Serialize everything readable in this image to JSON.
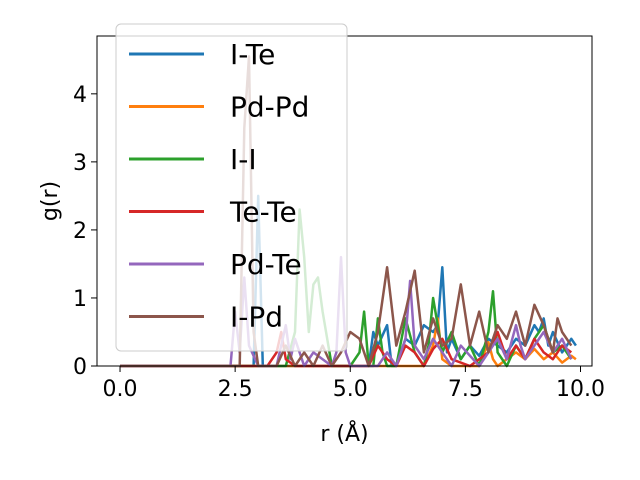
{
  "chart_data": {
    "type": "line",
    "title": "",
    "xlabel": "r (Å)",
    "ylabel": "g(r)",
    "xlim": [
      -0.5,
      10.25
    ],
    "ylim": [
      0,
      4.85
    ],
    "xticks": [
      0.0,
      2.5,
      5.0,
      7.5,
      10.0
    ],
    "xtick_labels": [
      "0.0",
      "2.5",
      "5.0",
      "7.5",
      "10.0"
    ],
    "yticks": [
      0,
      1,
      2,
      3,
      4
    ],
    "ytick_labels": [
      "0",
      "1",
      "2",
      "3",
      "4"
    ],
    "grid": false,
    "legend_position": "upper-left",
    "series": [
      {
        "name": "I-Te",
        "color": "#1f77b4",
        "x": [
          0.0,
          2.9,
          3.0,
          3.1,
          3.2,
          3.3,
          5.0,
          5.4,
          5.5,
          5.6,
          5.8,
          5.9,
          6.0,
          6.2,
          6.4,
          6.6,
          6.8,
          6.9,
          7.0,
          7.1,
          7.2,
          7.4,
          7.6,
          7.8,
          8.0,
          8.2,
          8.4,
          8.6,
          8.8,
          9.0,
          9.1,
          9.2,
          9.3,
          9.4,
          9.6,
          9.8,
          9.9
        ],
        "y": [
          0.0,
          0.0,
          2.5,
          0.0,
          0.0,
          0.0,
          0.0,
          0.0,
          0.5,
          0.3,
          0.6,
          0.0,
          0.0,
          0.4,
          0.3,
          0.6,
          0.5,
          0.6,
          1.45,
          0.2,
          0.4,
          0.1,
          0.3,
          0.15,
          0.4,
          0.3,
          0.2,
          0.4,
          0.3,
          0.6,
          0.5,
          0.7,
          0.3,
          0.5,
          0.2,
          0.4,
          0.3
        ]
      },
      {
        "name": "Pd-Pd",
        "color": "#ff7f0e",
        "x": [
          0.0,
          6.0,
          6.6,
          6.8,
          6.9,
          7.0,
          7.2,
          7.8,
          8.0,
          8.1,
          8.2,
          8.6,
          8.8,
          9.0,
          9.2,
          9.4,
          9.6,
          9.8,
          9.9
        ],
        "y": [
          0.0,
          0.0,
          0.0,
          0.3,
          0.7,
          0.1,
          0.0,
          0.0,
          0.35,
          0.1,
          0.0,
          0.2,
          0.1,
          0.25,
          0.1,
          0.2,
          0.05,
          0.15,
          0.1
        ]
      },
      {
        "name": "I-I",
        "color": "#2ca02c",
        "x": [
          0.0,
          3.6,
          3.8,
          3.9,
          4.0,
          4.1,
          4.2,
          4.3,
          4.4,
          4.6,
          5.0,
          5.2,
          5.3,
          5.4,
          5.5,
          5.6,
          5.7,
          5.8,
          6.0,
          6.2,
          6.4,
          6.6,
          6.7,
          6.8,
          6.9,
          7.0,
          7.2,
          7.4,
          7.6,
          7.8,
          8.0,
          8.1,
          8.2,
          8.4,
          8.6,
          8.8,
          9.0,
          9.2,
          9.4,
          9.6,
          9.8
        ],
        "y": [
          0.0,
          0.0,
          0.5,
          2.3,
          1.6,
          0.5,
          1.2,
          1.3,
          0.8,
          0.0,
          0.0,
          0.2,
          0.8,
          0.0,
          0.0,
          0.7,
          0.2,
          0.0,
          0.0,
          0.7,
          0.2,
          0.0,
          0.3,
          1.0,
          0.6,
          0.2,
          0.5,
          0.1,
          0.3,
          0.0,
          0.5,
          1.1,
          0.2,
          0.0,
          0.3,
          0.1,
          0.4,
          0.6,
          0.2,
          0.3,
          0.1
        ]
      },
      {
        "name": "Te-Te",
        "color": "#d62728",
        "x": [
          0.0,
          3.2,
          3.4,
          3.5,
          3.6,
          3.8,
          5.4,
          5.6,
          5.8,
          6.0,
          6.2,
          6.4,
          6.6,
          6.8,
          7.0,
          7.2,
          7.6,
          8.0,
          8.2,
          8.4,
          8.6,
          8.8,
          9.0,
          9.2,
          9.4,
          9.6,
          9.8
        ],
        "y": [
          0.0,
          0.0,
          0.2,
          0.5,
          0.1,
          0.0,
          0.0,
          0.3,
          0.1,
          0.0,
          0.3,
          0.2,
          0.0,
          0.25,
          0.4,
          0.1,
          0.0,
          0.2,
          0.5,
          0.1,
          0.3,
          0.1,
          0.4,
          0.2,
          0.1,
          0.3,
          0.2
        ]
      },
      {
        "name": "Pd-Te",
        "color": "#9467bd",
        "x": [
          0.0,
          2.4,
          2.5,
          2.6,
          2.7,
          2.8,
          3.0,
          3.4,
          3.6,
          3.7,
          3.8,
          4.0,
          4.2,
          4.4,
          4.6,
          4.7,
          4.8,
          4.9,
          5.0,
          5.6,
          5.8,
          6.0,
          6.2,
          6.3,
          6.4,
          6.6,
          6.8,
          7.0,
          7.2,
          7.4,
          7.8,
          8.0,
          8.2,
          8.4,
          8.6,
          8.7,
          8.8,
          9.0,
          9.2,
          9.4,
          9.6,
          9.8
        ],
        "y": [
          0.0,
          0.0,
          0.8,
          0.2,
          1.3,
          0.3,
          0.0,
          0.0,
          0.6,
          0.1,
          0.4,
          0.0,
          0.2,
          0.1,
          0.0,
          0.2,
          1.6,
          0.2,
          0.0,
          0.0,
          0.2,
          0.0,
          0.4,
          1.25,
          0.3,
          0.1,
          0.4,
          0.2,
          0.0,
          0.3,
          0.0,
          0.2,
          0.4,
          0.1,
          0.6,
          0.3,
          0.1,
          0.3,
          0.5,
          0.2,
          0.4,
          0.1
        ]
      },
      {
        "name": "I-Pd",
        "color": "#8c564b",
        "x": [
          0.0,
          2.6,
          2.7,
          2.8,
          2.9,
          3.0,
          3.4,
          3.6,
          3.8,
          4.0,
          4.2,
          4.4,
          4.6,
          4.8,
          5.0,
          5.2,
          5.4,
          5.6,
          5.8,
          6.0,
          6.2,
          6.4,
          6.6,
          6.8,
          7.0,
          7.2,
          7.4,
          7.6,
          7.8,
          8.0,
          8.2,
          8.4,
          8.6,
          8.8,
          9.0,
          9.2,
          9.4,
          9.5,
          9.6,
          9.8
        ],
        "y": [
          0.0,
          0.0,
          3.5,
          4.55,
          0.5,
          0.0,
          0.0,
          0.3,
          0.0,
          0.2,
          0.0,
          0.3,
          0.0,
          0.2,
          0.5,
          0.4,
          0.0,
          0.5,
          1.45,
          0.3,
          0.8,
          1.4,
          0.2,
          0.7,
          0.3,
          0.4,
          1.2,
          0.3,
          0.8,
          0.2,
          0.6,
          0.4,
          0.8,
          0.3,
          0.9,
          0.6,
          0.2,
          0.7,
          0.5,
          0.3
        ]
      }
    ]
  }
}
